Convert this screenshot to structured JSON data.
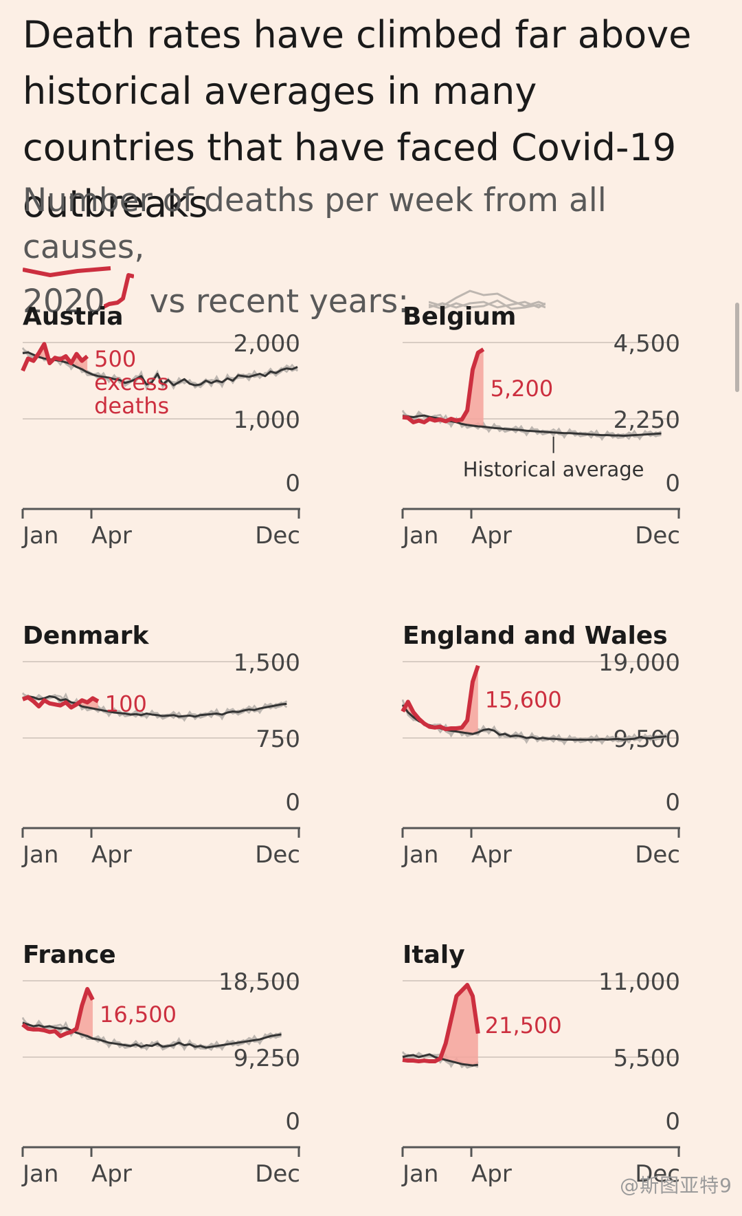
{
  "header": {
    "title": "Death rates have climbed far above historical averages in many countries that have faced Covid-19 outbreaks",
    "subtitle_part1": "Number of deaths per week from all causes,",
    "subtitle_2020": "2020",
    "subtitle_vs": "vs recent years:"
  },
  "colors": {
    "background": "#fcefe5",
    "line_2020": "#cc2f3f",
    "historical_avg": "#333333",
    "recent_years": "#bdb6b0",
    "excess_fill": "#f4a39c",
    "axis": "#555555",
    "grid": "#d8ccc3"
  },
  "watermark": "@斯图亚特9",
  "chart_data": [
    {
      "type": "line",
      "title": "Austria",
      "yticks": [
        "2,000",
        "1,000",
        "0"
      ],
      "ytick_values": [
        2000,
        1000,
        0
      ],
      "ylim": [
        0,
        2000
      ],
      "xticks": [
        "Jan",
        "Apr",
        "Dec"
      ],
      "annotation": [
        "500",
        "excess",
        "deaths"
      ],
      "series": [
        {
          "name": "2020",
          "values": [
            1630,
            1790,
            1760,
            1860,
            1980,
            1730,
            1800,
            1780,
            1820,
            1730,
            1850,
            1760,
            1820
          ]
        },
        {
          "name": "Historical average",
          "values": [
            1860,
            1870,
            1840,
            1810,
            1790,
            1780,
            1770,
            1760,
            1740,
            1720,
            1680,
            1650,
            1610,
            1580,
            1560,
            1550,
            1540,
            1520,
            1510,
            1470,
            1490,
            1520,
            1560,
            1450,
            1480,
            1590,
            1450,
            1510,
            1440,
            1480,
            1520,
            1460,
            1440,
            1450,
            1500,
            1470,
            1500,
            1480,
            1530,
            1500,
            1570,
            1560,
            1550,
            1570,
            1590,
            1560,
            1620,
            1600,
            1640,
            1660,
            1650,
            1680
          ]
        }
      ]
    },
    {
      "type": "line",
      "title": "Belgium",
      "yticks": [
        "4,500",
        "2,250",
        "0"
      ],
      "ytick_values": [
        4500,
        2250,
        0
      ],
      "ylim": [
        0,
        4500
      ],
      "xticks": [
        "Jan",
        "Apr",
        "Dec"
      ],
      "annotation": [
        "5,200"
      ],
      "avg_label": "Historical average",
      "series": [
        {
          "name": "2020",
          "values": [
            2300,
            2280,
            2150,
            2200,
            2150,
            2250,
            2200,
            2230,
            2180,
            2250,
            2200,
            2230,
            2500,
            3700,
            4200,
            4300
          ]
        },
        {
          "name": "Historical average",
          "values": [
            2340,
            2320,
            2300,
            2330,
            2350,
            2310,
            2280,
            2250,
            2200,
            2180,
            2150,
            2100,
            2070,
            2050,
            2030,
            2020,
            2000,
            1980,
            1970,
            1950,
            1940,
            1930,
            1920,
            1900,
            1890,
            1880,
            1870,
            1860,
            1850,
            1840,
            1830,
            1830,
            1820,
            1810,
            1800,
            1790,
            1780,
            1770,
            1770,
            1760,
            1760,
            1750,
            1760,
            1770,
            1780,
            1790,
            1800,
            1810,
            1820
          ]
        }
      ]
    },
    {
      "type": "line",
      "title": "Denmark",
      "yticks": [
        "1,500",
        "750",
        "0"
      ],
      "ytick_values": [
        1500,
        750,
        0
      ],
      "ylim": [
        0,
        1500
      ],
      "xticks": [
        "Jan",
        "Apr",
        "Dec"
      ],
      "annotation": [
        "100"
      ],
      "series": [
        {
          "name": "2020",
          "values": [
            1130,
            1150,
            1110,
            1060,
            1120,
            1090,
            1080,
            1070,
            1100,
            1050,
            1080,
            1120,
            1100,
            1140,
            1110
          ]
        },
        {
          "name": "Historical average",
          "values": [
            1140,
            1160,
            1150,
            1130,
            1140,
            1160,
            1150,
            1120,
            1130,
            1100,
            1090,
            1060,
            1050,
            1040,
            1030,
            1020,
            1010,
            1000,
            995,
            990,
            980,
            985,
            975,
            990,
            980,
            975,
            965,
            970,
            975,
            960,
            965,
            970,
            960,
            975,
            980,
            985,
            990,
            980,
            1000,
            1010,
            1005,
            1020,
            1030,
            1025,
            1040,
            1050,
            1060,
            1070,
            1080,
            1085
          ]
        }
      ]
    },
    {
      "type": "line",
      "title": "England and Wales",
      "yticks": [
        "19,000",
        "9,500",
        "0"
      ],
      "ytick_values": [
        19000,
        9500,
        0
      ],
      "ylim": [
        0,
        19000
      ],
      "xticks": [
        "Jan",
        "Apr",
        "Dec"
      ],
      "annotation": [
        "15,600"
      ],
      "series": [
        {
          "name": "2020",
          "values": [
            12800,
            14000,
            12700,
            11900,
            11300,
            10900,
            10800,
            10900,
            10600,
            10700,
            10700,
            10800,
            11700,
            16500,
            18500
          ]
        },
        {
          "name": "Historical average",
          "values": [
            13600,
            12700,
            12100,
            11600,
            11300,
            11100,
            10900,
            10700,
            10500,
            10400,
            10300,
            10200,
            10100,
            10000,
            10200,
            10500,
            10600,
            10400,
            9900,
            10000,
            9700,
            9800,
            9700,
            9500,
            9600,
            9400,
            9500,
            9400,
            9400,
            9350,
            9300,
            9300,
            9280,
            9300,
            9280,
            9300,
            9300,
            9350,
            9300,
            9350,
            9380,
            9300,
            9350,
            9400,
            9600,
            9500,
            9450,
            9600,
            9650,
            9700
          ]
        }
      ]
    },
    {
      "type": "line",
      "title": "France",
      "yticks": [
        "18,500",
        "9,250",
        "0"
      ],
      "ytick_values": [
        18500,
        9250,
        0
      ],
      "ylim": [
        0,
        18500
      ],
      "xticks": [
        "Jan",
        "Apr",
        "Dec"
      ],
      "annotation": [
        "16,500"
      ],
      "series": [
        {
          "name": "2020",
          "values": [
            13200,
            12700,
            12600,
            12600,
            12500,
            12300,
            12400,
            11800,
            12100,
            12300,
            12700,
            15500,
            17500,
            16200
          ]
        },
        {
          "name": "Historical average",
          "values": [
            13400,
            13200,
            13000,
            13100,
            12900,
            13000,
            12800,
            12700,
            12800,
            12500,
            12200,
            12000,
            11800,
            11500,
            11400,
            11200,
            11000,
            10900,
            10800,
            10700,
            10600,
            10800,
            10500,
            10700,
            10600,
            10900,
            10500,
            10600,
            10700,
            11000,
            10700,
            10800,
            10500,
            10600,
            10400,
            10500,
            10600,
            10700,
            10800,
            10900,
            11000,
            11100,
            11200,
            11300,
            11400,
            11600,
            11800,
            11900,
            12000
          ]
        }
      ]
    },
    {
      "type": "line",
      "title": "Italy",
      "yticks": [
        "11,000",
        "5,500",
        "0"
      ],
      "ytick_values": [
        11000,
        5500,
        0
      ],
      "ylim": [
        0,
        11000
      ],
      "xticks": [
        "Jan",
        "Apr",
        "Dec"
      ],
      "annotation": [
        "21,500"
      ],
      "series": [
        {
          "name": "2020",
          "values": [
            5300,
            5250,
            5250,
            5200,
            5250,
            5200,
            5200,
            5400,
            6500,
            8200,
            9900,
            10300,
            10700,
            9900,
            7200
          ]
        },
        {
          "name": "Historical average",
          "values": [
            5500,
            5600,
            5650,
            5500,
            5600,
            5700,
            5500,
            5400,
            5300,
            5200,
            5100,
            5000,
            4950,
            4900,
            4950
          ]
        }
      ]
    }
  ]
}
